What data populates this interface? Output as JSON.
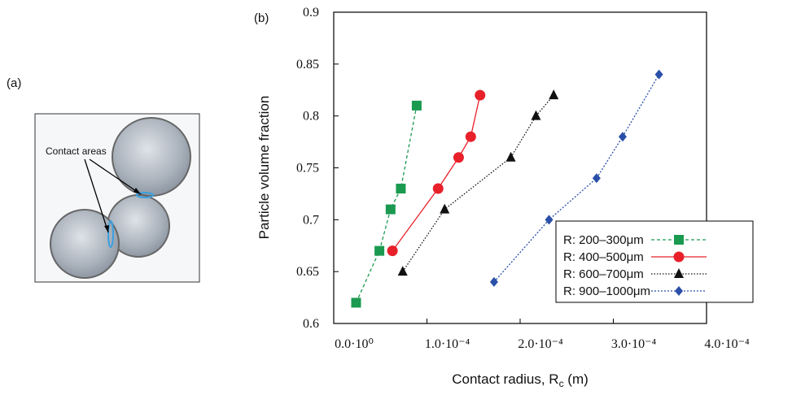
{
  "panel_a": {
    "label": "(a)",
    "annotation": "Contact areas"
  },
  "chart_data": {
    "type": "line",
    "panel_label": "(b)",
    "xlabel": [
      "Contact radius, R",
      "c",
      " (m)"
    ],
    "ylabel": "Particle volume fraction",
    "xlim": [
      0,
      0.0004
    ],
    "ylim": [
      0.6,
      0.9
    ],
    "xticks": [
      {
        "value": 0,
        "label": "0.0·10⁰"
      },
      {
        "value": 0.0001,
        "label": "1.0·10⁻⁴"
      },
      {
        "value": 0.0002,
        "label": "2.0·10⁻⁴"
      },
      {
        "value": 0.0003,
        "label": "3.0·10⁻⁴"
      },
      {
        "value": 0.0004,
        "label": "4.0·10⁻⁴"
      }
    ],
    "yticks": [
      0.6,
      0.65,
      0.7,
      0.75,
      0.8,
      0.85,
      0.9
    ],
    "legend": "lower right",
    "series": [
      {
        "name": "R: 200–300μm",
        "color": "#1a9a50",
        "marker": "square",
        "dash": "4,3",
        "x": [
          2.4e-05,
          4.9e-05,
          6.1e-05,
          7.2e-05,
          8.9e-05
        ],
        "values": [
          0.62,
          0.67,
          0.71,
          0.73,
          0.81
        ]
      },
      {
        "name": "R: 400–500μm",
        "color": "#e8202a",
        "marker": "circle",
        "dash": "none",
        "x": [
          6.3e-05,
          0.000112,
          0.000134,
          0.000147,
          0.000157
        ],
        "values": [
          0.67,
          0.73,
          0.76,
          0.78,
          0.82
        ]
      },
      {
        "name": "R: 600–700μm",
        "color": "#111111",
        "marker": "triangle",
        "dash": "1.5,2",
        "x": [
          7.4e-05,
          0.000119,
          0.00019,
          0.000217,
          0.000236
        ],
        "values": [
          0.65,
          0.71,
          0.76,
          0.8,
          0.82
        ]
      },
      {
        "name": "R: 900–1000μm",
        "color": "#2a4fa8",
        "marker": "diamond",
        "dash": "2,2",
        "x": [
          0.000172,
          0.000231,
          0.000282,
          0.00031,
          0.000349
        ],
        "values": [
          0.64,
          0.7,
          0.74,
          0.78,
          0.84
        ]
      }
    ]
  }
}
